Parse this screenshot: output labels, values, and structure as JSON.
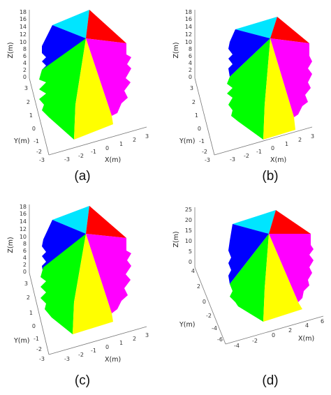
{
  "colors": {
    "cyan": "#00e5ff",
    "red": "#ff0000",
    "blue": "#0000ff",
    "green": "#00ff00",
    "yellow": "#ffff00",
    "magenta": "#ff00ff"
  },
  "panels": [
    {
      "caption": "(a)",
      "z_label": "Z(m)",
      "y_label": "Y(m)",
      "x_label": "X(m)",
      "z_ticks": [
        "18",
        "16",
        "14",
        "12",
        "10",
        "8",
        "6",
        "4",
        "2",
        "0"
      ],
      "y_ticks": [
        "3",
        "2",
        "1",
        "0",
        "-1",
        "-2",
        "-3"
      ],
      "x_ticks": [
        "-3",
        "-2",
        "-1",
        "0",
        "1",
        "2",
        "3"
      ]
    },
    {
      "caption": "(b)",
      "z_label": "Z(m)",
      "y_label": "Y(m)",
      "x_label": "X(m)",
      "z_ticks": [
        "18",
        "16",
        "14",
        "12",
        "10",
        "8",
        "6",
        "4",
        "2",
        "0"
      ],
      "y_ticks": [
        "3",
        "2",
        "1",
        "0",
        "-1",
        "-2",
        "-3"
      ],
      "x_ticks": [
        "-3",
        "-2",
        "-1",
        "0",
        "1",
        "2",
        "3"
      ]
    },
    {
      "caption": "(c)",
      "z_label": "Z(m)",
      "y_label": "Y(m)",
      "x_label": "X(m)",
      "z_ticks": [
        "18",
        "16",
        "14",
        "12",
        "10",
        "8",
        "6",
        "4",
        "2",
        "0"
      ],
      "y_ticks": [
        "3",
        "2",
        "1",
        "0",
        "-1",
        "-2",
        "-3"
      ],
      "x_ticks": [
        "-3",
        "-2",
        "-1",
        "0",
        "1",
        "2",
        "3"
      ]
    },
    {
      "caption": "(d)",
      "z_label": "Z(m)",
      "y_label": "Y(m)",
      "x_label": "X(m)",
      "z_ticks": [
        "25",
        "20",
        "15",
        "10",
        "5",
        "0"
      ],
      "y_ticks": [
        "4",
        "2",
        "0",
        "-2",
        "-4",
        "-6"
      ],
      "x_ticks": [
        "-4",
        "-2",
        "0",
        "2",
        "4",
        "6"
      ]
    }
  ]
}
